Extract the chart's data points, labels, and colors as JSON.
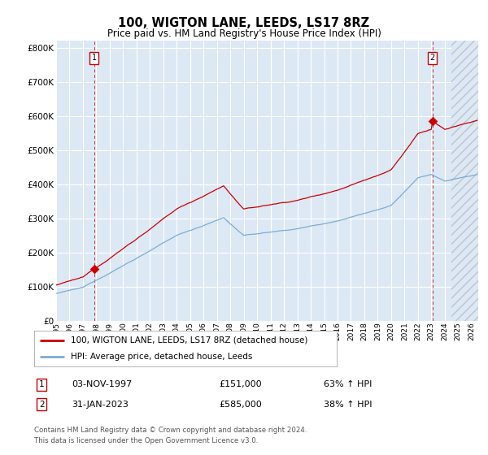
{
  "title": "100, WIGTON LANE, LEEDS, LS17 8RZ",
  "subtitle": "Price paid vs. HM Land Registry's House Price Index (HPI)",
  "ylabel_ticks": [
    "£0",
    "£100K",
    "£200K",
    "£300K",
    "£400K",
    "£500K",
    "£600K",
    "£700K",
    "£800K"
  ],
  "ytick_values": [
    0,
    100000,
    200000,
    300000,
    400000,
    500000,
    600000,
    700000,
    800000
  ],
  "ylim": [
    0,
    820000
  ],
  "hpi_color": "#7aadd4",
  "price_color": "#cc0000",
  "marker_color": "#cc0000",
  "background_color": "#dde8f5",
  "grid_color": "#ffffff",
  "sale1_year": 1997.84,
  "sale1_price": 151000,
  "sale2_year": 2023.08,
  "sale2_price": 585000,
  "legend_line1": "100, WIGTON LANE, LEEDS, LS17 8RZ (detached house)",
  "legend_line2": "HPI: Average price, detached house, Leeds",
  "footer1": "Contains HM Land Registry data © Crown copyright and database right 2024.",
  "footer2": "This data is licensed under the Open Government Licence v3.0.",
  "table_row1": [
    "1",
    "03-NOV-1997",
    "£151,000",
    "63% ↑ HPI"
  ],
  "table_row2": [
    "2",
    "31-JAN-2023",
    "£585,000",
    "38% ↑ HPI"
  ]
}
